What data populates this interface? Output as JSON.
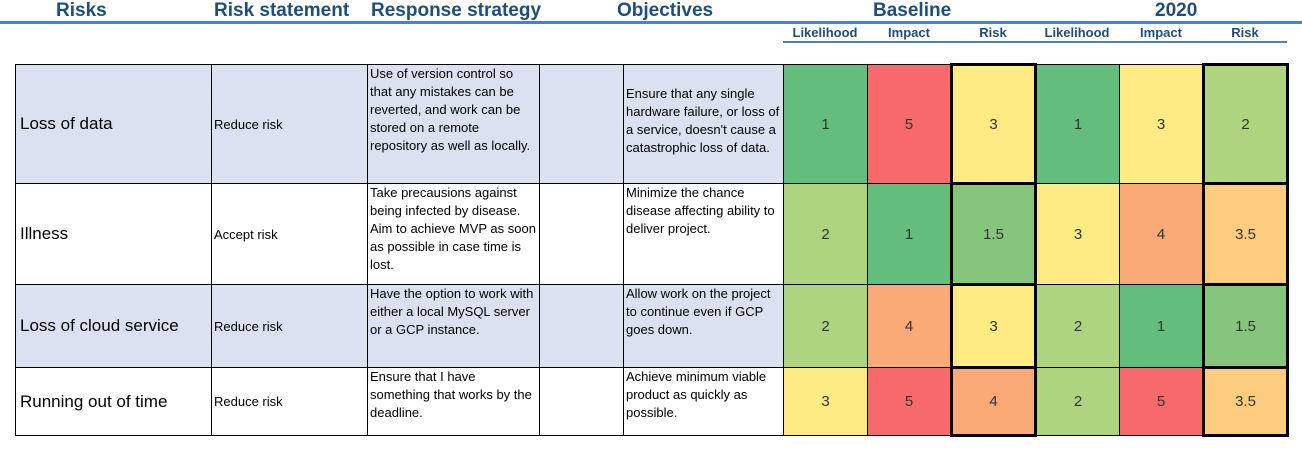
{
  "headers": {
    "risks": "Risks",
    "risk_statement": "Risk statement",
    "response_strategy": "Response strategy",
    "objectives": "Objectives",
    "baseline": "Baseline",
    "year": "2020"
  },
  "subheaders": [
    "Likelihood",
    "Impact",
    "Risk",
    "Likelihood",
    "Impact",
    "Risk"
  ],
  "colors": {
    "header_text": "#1f4e79",
    "rule": "#4f81bd",
    "shaded_row": "#dce1f1",
    "score_1": "#63be7b",
    "score_1_5": "#86c67c",
    "score_2": "#aed480",
    "score_3": "#ffeb84",
    "score_3_5": "#fdcc7e",
    "score_4": "#f9aa76",
    "score_5": "#f8696b"
  },
  "rows": [
    {
      "name": "Loss of data",
      "statement": "Reduce risk",
      "strategy": "Use of version control so that any mistakes can be reverted, and work can be stored on a remote repository as well as locally.",
      "objective": "Ensure that any single hardware failure, or loss of a service, doesn't cause a catastrophic loss of data.",
      "scores": [
        "1",
        "5",
        "3",
        "1",
        "3",
        "2"
      ]
    },
    {
      "name": "Illness",
      "statement": "Accept risk",
      "strategy": "Take precausions against being infected by disease. Aim to achieve MVP as soon as possible in case time is lost.",
      "objective": "Minimize the chance disease affecting ability to deliver project.",
      "scores": [
        "2",
        "1",
        "1.5",
        "3",
        "4",
        "3.5"
      ]
    },
    {
      "name": "Loss of cloud service",
      "statement": "Reduce risk",
      "strategy": "Have the option to work with either a local MySQL server or a GCP instance.",
      "objective": "Allow work on the project to continue even if GCP goes down.",
      "scores": [
        "2",
        "4",
        "3",
        "2",
        "1",
        "1.5"
      ]
    },
    {
      "name": "Running out of time",
      "statement": "Reduce risk",
      "strategy": "Ensure that I have something that works by the deadline.",
      "objective": "Achieve minimum viable product as quickly as possible.",
      "scores": [
        "3",
        "5",
        "4",
        "2",
        "5",
        "3.5"
      ]
    }
  ]
}
